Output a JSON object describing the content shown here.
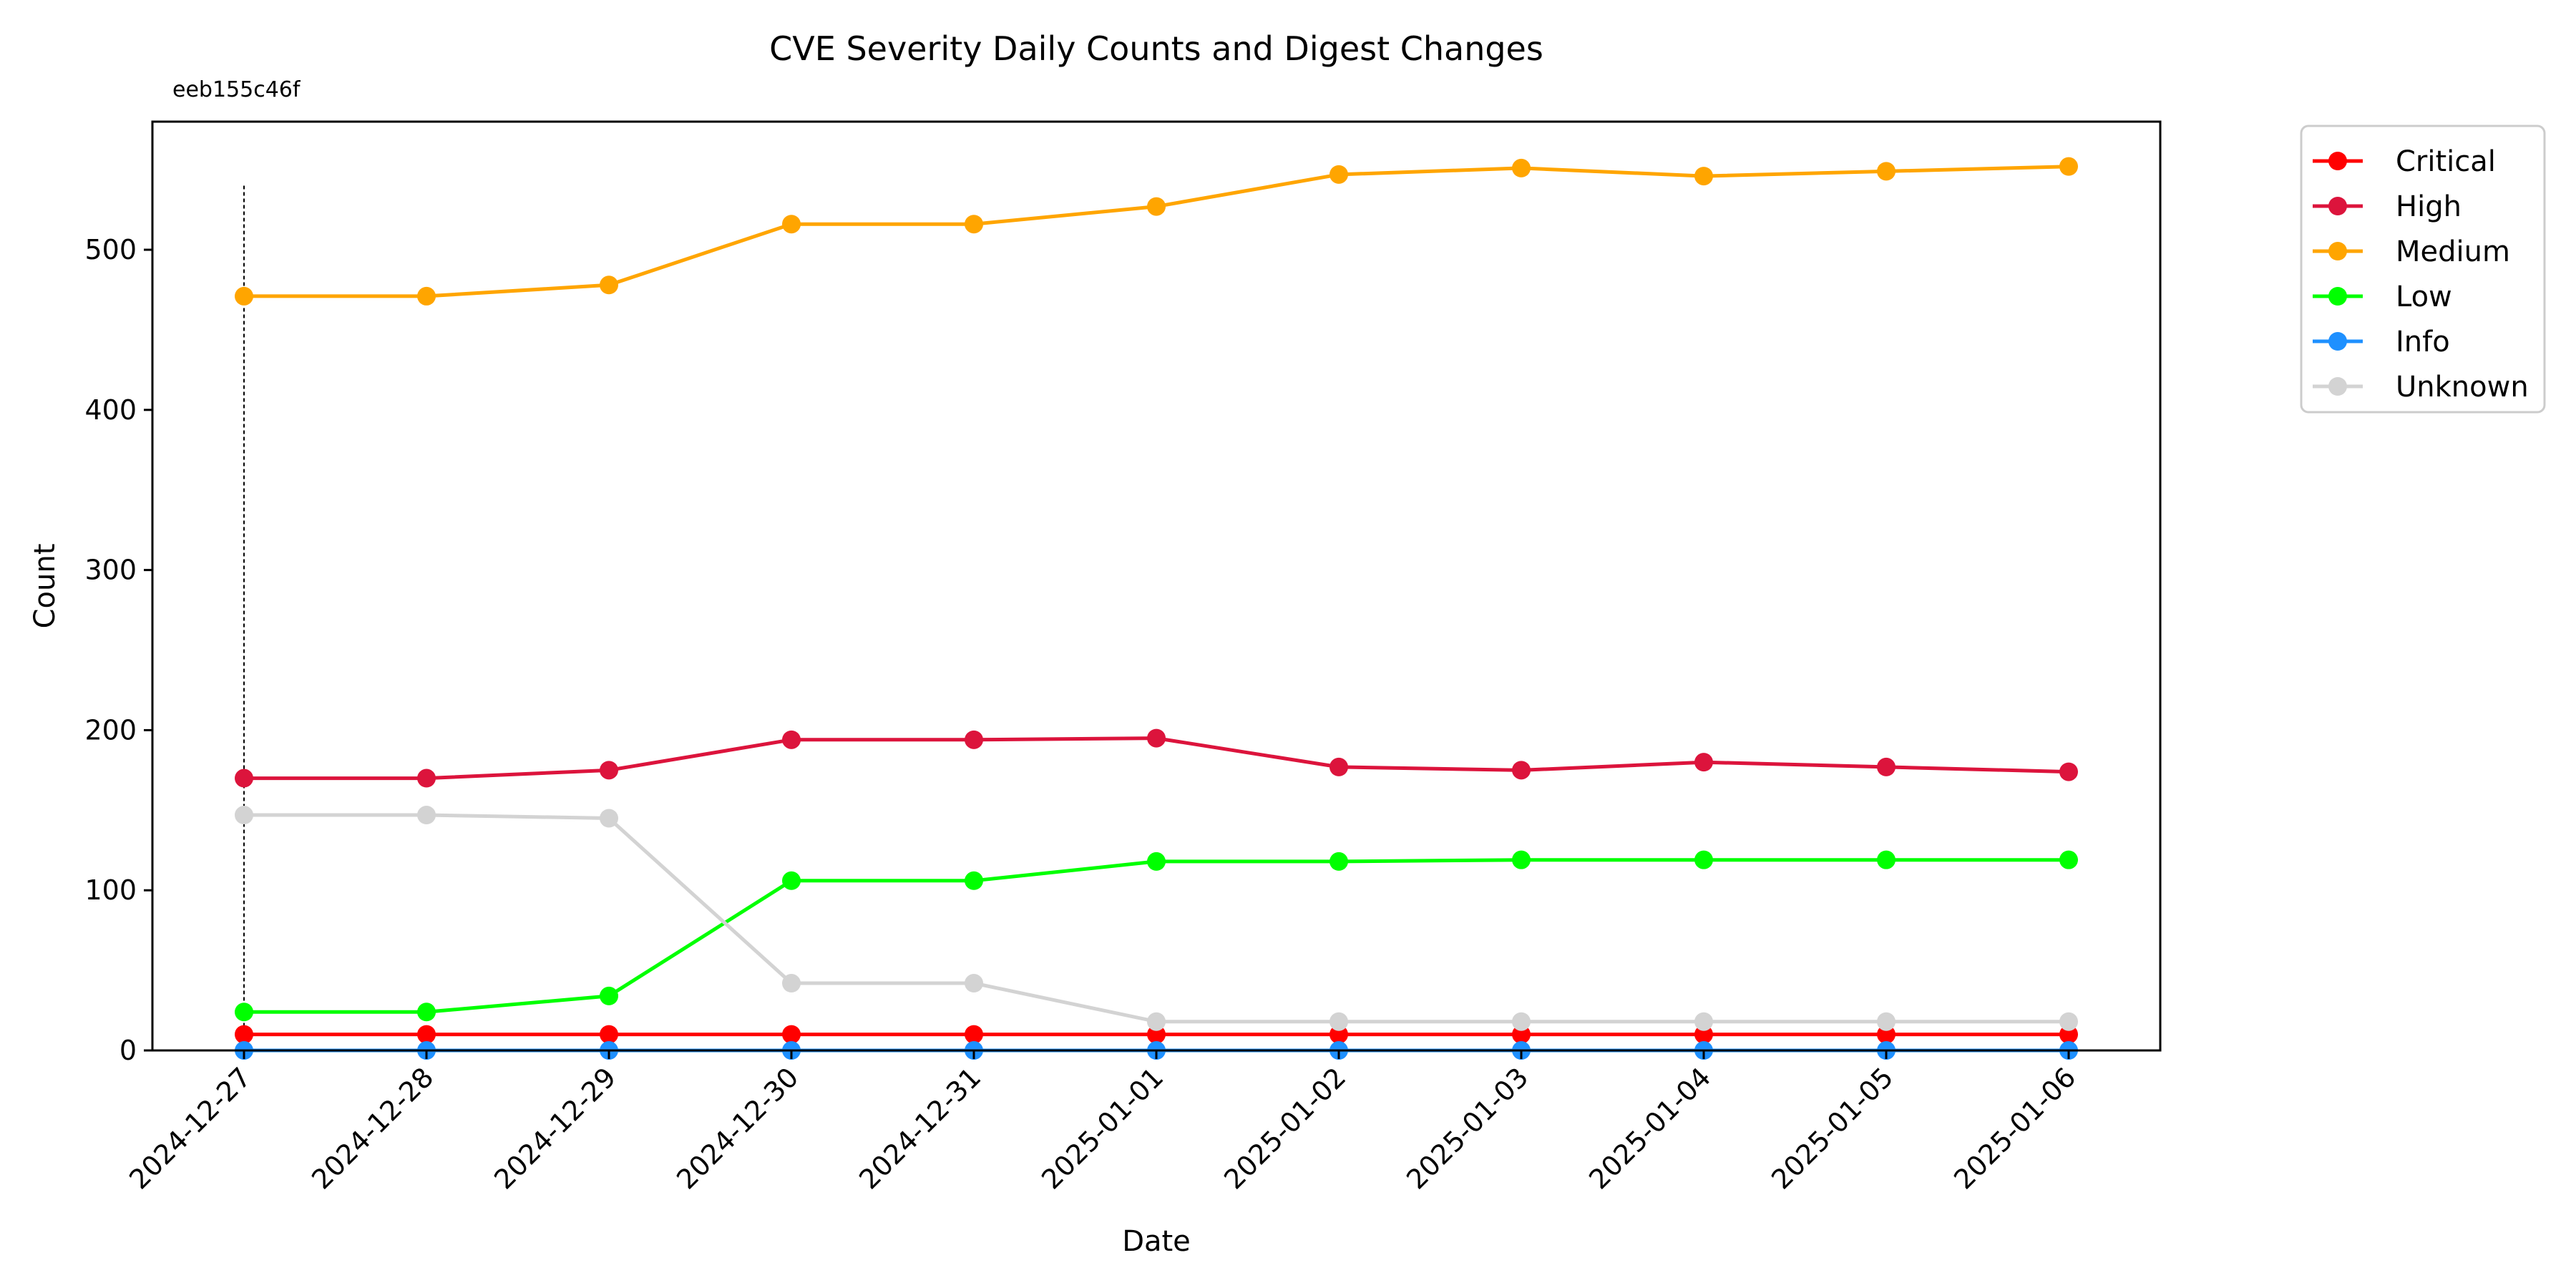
{
  "chart_data": {
    "type": "line",
    "title": "CVE Severity Daily Counts and Digest Changes",
    "xlabel": "Date",
    "ylabel": "Count",
    "x": [
      "2024-12-27",
      "2024-12-28",
      "2024-12-29",
      "2024-12-30",
      "2024-12-31",
      "2025-01-01",
      "2025-01-02",
      "2025-01-03",
      "2025-01-04",
      "2025-01-05",
      "2025-01-06"
    ],
    "ylim": [
      0,
      580
    ],
    "yticks": [
      0,
      100,
      200,
      300,
      400,
      500
    ],
    "grid": false,
    "legend_position": "outside-top-right",
    "series": [
      {
        "name": "Critical",
        "color": "#ff0000",
        "values": [
          10,
          10,
          10,
          10,
          10,
          10,
          10,
          10,
          10,
          10,
          10
        ]
      },
      {
        "name": "High",
        "color": "#dc143c",
        "values": [
          170,
          170,
          175,
          194,
          194,
          195,
          177,
          175,
          180,
          177,
          174
        ]
      },
      {
        "name": "Medium",
        "color": "#ffa500",
        "values": [
          471,
          471,
          478,
          516,
          516,
          527,
          547,
          551,
          546,
          549,
          552
        ]
      },
      {
        "name": "Low",
        "color": "#00ff00",
        "values": [
          24,
          24,
          34,
          106,
          106,
          118,
          118,
          119,
          119,
          119,
          119
        ]
      },
      {
        "name": "Info",
        "color": "#1e90ff",
        "values": [
          0,
          0,
          0,
          0,
          0,
          0,
          0,
          0,
          0,
          0,
          0
        ]
      },
      {
        "name": "Unknown",
        "color": "#d3d3d3",
        "values": [
          147,
          147,
          145,
          42,
          42,
          18,
          18,
          18,
          18,
          18,
          18
        ]
      }
    ],
    "annotations": [
      {
        "text": "eeb155c46f",
        "x": "2024-12-27",
        "line_top_value": 540
      }
    ]
  }
}
